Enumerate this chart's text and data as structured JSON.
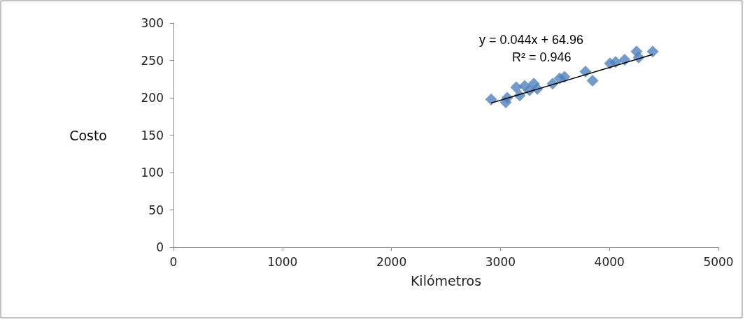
{
  "chart_data": {
    "type": "scatter",
    "xlabel": "Kilómetros",
    "ylabel": "Costo",
    "marker": "diamond",
    "grid": false,
    "xlim": [
      0,
      5000
    ],
    "xticks": [
      0,
      1000,
      2000,
      3000,
      4000,
      5000
    ],
    "ylim": [
      0,
      300
    ],
    "yticks": [
      0,
      50,
      100,
      150,
      200,
      250,
      300
    ],
    "series": [
      {
        "color": "#4f81bd",
        "x": [
          2915,
          3049,
          3062,
          3145,
          3177,
          3222,
          3267,
          3306,
          3338,
          3479,
          3543,
          3588,
          3780,
          3845,
          4005,
          4056,
          4140,
          4249,
          4268,
          4397
        ],
        "values": [
          198,
          194,
          200,
          214,
          203,
          216,
          210,
          219,
          212,
          219,
          226,
          228,
          235,
          223,
          246,
          248,
          251,
          262,
          254,
          262
        ]
      },
      {
        "type": "line",
        "color": "#000000",
        "x": [
          2915,
          4397
        ],
        "values": [
          193,
          258
        ],
        "marker": "none"
      }
    ],
    "annotations": [
      "y = 0.044x + 64.96",
      "R² = 0.946"
    ]
  }
}
